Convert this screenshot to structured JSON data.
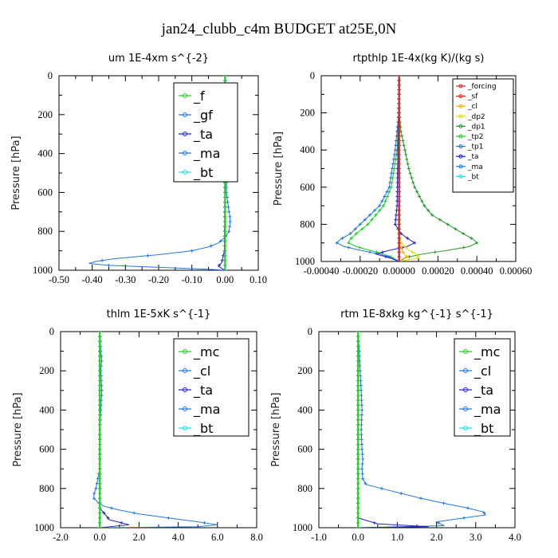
{
  "figure": {
    "title": "jan24_clubb_c4m  BUDGET at25E,0N"
  },
  "colors": {
    "green": "#22cc22",
    "blue": "#2277dd",
    "navy": "#2222cc",
    "cyan": "#22dddd",
    "red": "#dd2222",
    "orange": "#ffaa00",
    "yellow": "#dddd00",
    "darkgreen": "#229922"
  },
  "chart_data": [
    {
      "type": "line",
      "title": "um   1E-4xm s^{-2}",
      "ylabel": "Pressure [hPa]",
      "xlim": [
        -0.5,
        0.1
      ],
      "ylim": [
        1000,
        0
      ],
      "xticks": [
        -0.5,
        -0.4,
        -0.3,
        -0.2,
        -0.1,
        0.0,
        0.1
      ],
      "xtick_labels": [
        "-0.50",
        "-0.40",
        "-0.30",
        "-0.20",
        "-0.10",
        "0.00",
        "0.10"
      ],
      "yticks": [
        0,
        200,
        400,
        600,
        800,
        1000
      ],
      "ytick_labels": [
        "0",
        "200",
        "400",
        "600",
        "800",
        "1000"
      ],
      "legend": {
        "position": "top-right",
        "size": "large"
      },
      "series": [
        {
          "name": "_gf",
          "color": "#2277dd",
          "pressure": [
            0,
            100,
            200,
            300,
            400,
            500,
            600,
            650,
            700,
            730,
            760,
            800,
            830,
            860,
            880,
            900,
            920,
            940,
            955,
            965,
            975,
            985,
            995,
            1000
          ],
          "values": [
            0.0,
            0.005,
            0.005,
            0.005,
            0.004,
            0.004,
            0.004,
            0.008,
            0.012,
            0.015,
            0.015,
            0.012,
            0.0,
            -0.02,
            -0.05,
            -0.1,
            -0.2,
            -0.33,
            -0.39,
            -0.41,
            -0.35,
            -0.2,
            -0.05,
            0.0
          ]
        },
        {
          "name": "_ta",
          "color": "#2222cc",
          "pressure": [
            0,
            500,
            900,
            960,
            980,
            990,
            1000
          ],
          "values": [
            0.0,
            0.0,
            -0.002,
            -0.01,
            -0.02,
            -0.01,
            0.0
          ]
        },
        {
          "name": "_ma",
          "color": "#2277dd",
          "pressure": [
            0,
            500,
            1000
          ],
          "values": [
            0.0,
            0.0,
            0.0
          ]
        },
        {
          "name": "_bt",
          "color": "#22dddd",
          "pressure": [
            0,
            500,
            1000
          ],
          "values": [
            0.0,
            0.0,
            0.0
          ]
        },
        {
          "name": "_f",
          "color": "#22cc22",
          "pressure": [
            0,
            1000
          ],
          "values": [
            0.0,
            0.0
          ]
        }
      ]
    },
    {
      "type": "line",
      "title": "rtpthlp   1E-4x(kg K)/(kg s)",
      "ylabel": "Pressure [hPa]",
      "xlim": [
        -0.0004,
        0.0006
      ],
      "ylim": [
        1000,
        0
      ],
      "xticks": [
        -0.0004,
        -0.0002,
        0.0,
        0.0002,
        0.0004,
        0.0006
      ],
      "xtick_labels": [
        "-0.00040",
        "-0.00020",
        "0.00000",
        "0.00020",
        "0.00040",
        "0.00060"
      ],
      "yticks": [
        0,
        200,
        400,
        600,
        800,
        1000
      ],
      "ytick_labels": [
        "0",
        "200",
        "400",
        "600",
        "800",
        "1000"
      ],
      "legend": {
        "position": "top-right",
        "size": "small"
      },
      "series": [
        {
          "name": "_dp1",
          "color": "#229922",
          "pressure": [
            200,
            300,
            400,
            500,
            600,
            700,
            750,
            800,
            850,
            880,
            900,
            920,
            940,
            960,
            980,
            1000
          ],
          "values": [
            0.0,
            1e-05,
            3e-05,
            5e-05,
            8e-05,
            0.00013,
            0.00017,
            0.00025,
            0.00033,
            0.00038,
            0.0004,
            0.00036,
            0.00025,
            0.00012,
            3e-05,
            0.0
          ]
        },
        {
          "name": "_tp2",
          "color": "#22cc22",
          "pressure": [
            200,
            400,
            600,
            700,
            800,
            850,
            880,
            900,
            920,
            940,
            960,
            980,
            1000
          ],
          "values": [
            0.0,
            -1e-05,
            -4e-05,
            -8e-05,
            -0.00016,
            -0.00022,
            -0.00025,
            -0.00026,
            -0.00022,
            -0.00015,
            -8e-05,
            -3e-05,
            0.0
          ]
        },
        {
          "name": "_tp1",
          "color": "#2277dd",
          "pressure": [
            200,
            400,
            600,
            700,
            750,
            800,
            850,
            880,
            900,
            920,
            940,
            960,
            980,
            1000
          ],
          "values": [
            0.0,
            -2e-05,
            -5e-05,
            -0.0001,
            -0.00015,
            -0.0002,
            -0.00025,
            -0.0003,
            -0.00032,
            -0.00028,
            -0.0002,
            -0.0001,
            -4e-05,
            0.0
          ]
        },
        {
          "name": "_ta",
          "color": "#2222cc",
          "pressure": [
            0,
            700,
            800,
            850,
            880,
            900,
            920,
            940,
            960,
            980,
            1000
          ],
          "values": [
            0.0,
            -1e-05,
            -2e-05,
            1e-05,
            5e-05,
            8e-05,
            4e-05,
            -5e-05,
            -0.00012,
            -5e-05,
            0.0
          ]
        },
        {
          "name": "_dp2",
          "color": "#dddd00",
          "pressure": [
            850,
            900,
            940,
            960,
            980,
            990,
            1000
          ],
          "values": [
            0.0,
            1e-05,
            5e-05,
            9e-05,
            0.0001,
            5e-05,
            0.0
          ]
        },
        {
          "name": "_cl",
          "color": "#ffaa00",
          "pressure": [
            900,
            950,
            975,
            990,
            1000
          ],
          "values": [
            0.0,
            2e-05,
            4e-05,
            2e-05,
            0.0
          ]
        },
        {
          "name": "_ma",
          "color": "#2277dd",
          "pressure": [
            0,
            1000
          ],
          "values": [
            0.0,
            0.0
          ]
        },
        {
          "name": "_bt",
          "color": "#22dddd",
          "pressure": [
            0,
            1000
          ],
          "values": [
            0.0,
            0.0
          ]
        },
        {
          "name": "_sf",
          "color": "#dd2222",
          "pressure": [
            0,
            1000
          ],
          "values": [
            0.0,
            0.0
          ]
        },
        {
          "name": "_forcing",
          "color": "#dd2222",
          "pressure": [
            0,
            1000
          ],
          "values": [
            0.0,
            0.0
          ]
        }
      ]
    },
    {
      "type": "line",
      "title": "thlm   1E-5xK s^{-1}",
      "ylabel": "Pressure [hPa]",
      "xlim": [
        -2.0,
        8.0
      ],
      "ylim": [
        1000,
        0
      ],
      "xticks": [
        -2,
        0,
        2,
        4,
        6,
        8
      ],
      "xtick_labels": [
        "-2.0",
        "0.0",
        "2.0",
        "4.0",
        "6.0",
        "8.0"
      ],
      "yticks": [
        0,
        200,
        400,
        600,
        800,
        1000
      ],
      "ytick_labels": [
        "0",
        "200",
        "400",
        "600",
        "800",
        "1000"
      ],
      "legend": {
        "position": "top-right",
        "size": "large"
      },
      "series": [
        {
          "name": "_cl",
          "color": "#2277dd",
          "pressure": [
            0,
            100,
            140,
            200,
            300,
            400,
            500,
            600,
            700,
            750,
            800,
            830,
            850,
            870,
            890,
            910,
            930,
            950,
            970,
            985,
            995,
            1000
          ],
          "values": [
            0.0,
            0.05,
            0.1,
            0.05,
            0.1,
            0.05,
            0.0,
            0.0,
            0.0,
            -0.1,
            -0.2,
            -0.3,
            -0.3,
            -0.1,
            0.2,
            1.0,
            2.0,
            3.5,
            5.0,
            6.0,
            5.0,
            0.0
          ]
        },
        {
          "name": "_ta",
          "color": "#2222cc",
          "pressure": [
            0,
            900,
            960,
            985,
            1000
          ],
          "values": [
            0.0,
            0.0,
            0.5,
            1.5,
            0.0
          ]
        },
        {
          "name": "_ma",
          "color": "#2277dd",
          "pressure": [
            0,
            1000
          ],
          "values": [
            0.0,
            0.0
          ]
        },
        {
          "name": "_bt",
          "color": "#22dddd",
          "pressure": [
            0,
            1000
          ],
          "values": [
            0.0,
            0.0
          ]
        },
        {
          "name": "_mc",
          "color": "#22cc22",
          "pressure": [
            0,
            1000
          ],
          "values": [
            0.0,
            0.0
          ]
        }
      ]
    },
    {
      "type": "line",
      "title": "rtm   1E-8xkg kg^{-1} s^{-1}",
      "ylabel": "Pressure [hPa]",
      "xlim": [
        -1.0,
        4.0
      ],
      "ylim": [
        1000,
        0
      ],
      "xticks": [
        -1,
        0,
        1,
        2,
        3,
        4
      ],
      "xtick_labels": [
        "-1.0",
        "0.0",
        "1.0",
        "2.0",
        "3.0",
        "4.0"
      ],
      "yticks": [
        0,
        200,
        400,
        600,
        800,
        1000
      ],
      "ytick_labels": [
        "0",
        "200",
        "400",
        "600",
        "800",
        "1000"
      ],
      "legend": {
        "position": "top-right",
        "size": "large"
      },
      "series": [
        {
          "name": "_cl",
          "color": "#2277dd",
          "pressure": [
            0,
            100,
            200,
            300,
            400,
            500,
            600,
            650,
            700,
            750,
            780,
            800,
            820,
            850,
            880,
            900,
            920,
            935,
            950,
            970,
            990,
            1000
          ],
          "values": [
            0.0,
            0.03,
            0.05,
            0.08,
            0.1,
            0.08,
            0.1,
            0.12,
            0.1,
            0.12,
            0.2,
            0.6,
            1.0,
            1.6,
            2.3,
            2.8,
            3.2,
            3.25,
            2.7,
            2.0,
            2.2,
            0.0
          ]
        },
        {
          "name": "_ta",
          "color": "#2222cc",
          "pressure": [
            0,
            950,
            980,
            995,
            1000
          ],
          "values": [
            0.0,
            0.0,
            0.5,
            1.8,
            0.0
          ]
        },
        {
          "name": "_ma",
          "color": "#2277dd",
          "pressure": [
            0,
            1000
          ],
          "values": [
            0.0,
            0.0
          ]
        },
        {
          "name": "_bt",
          "color": "#22dddd",
          "pressure": [
            0,
            1000
          ],
          "values": [
            0.0,
            0.0
          ]
        },
        {
          "name": "_mc",
          "color": "#22cc22",
          "pressure": [
            0,
            1000
          ],
          "values": [
            0.0,
            0.0
          ]
        }
      ]
    }
  ]
}
